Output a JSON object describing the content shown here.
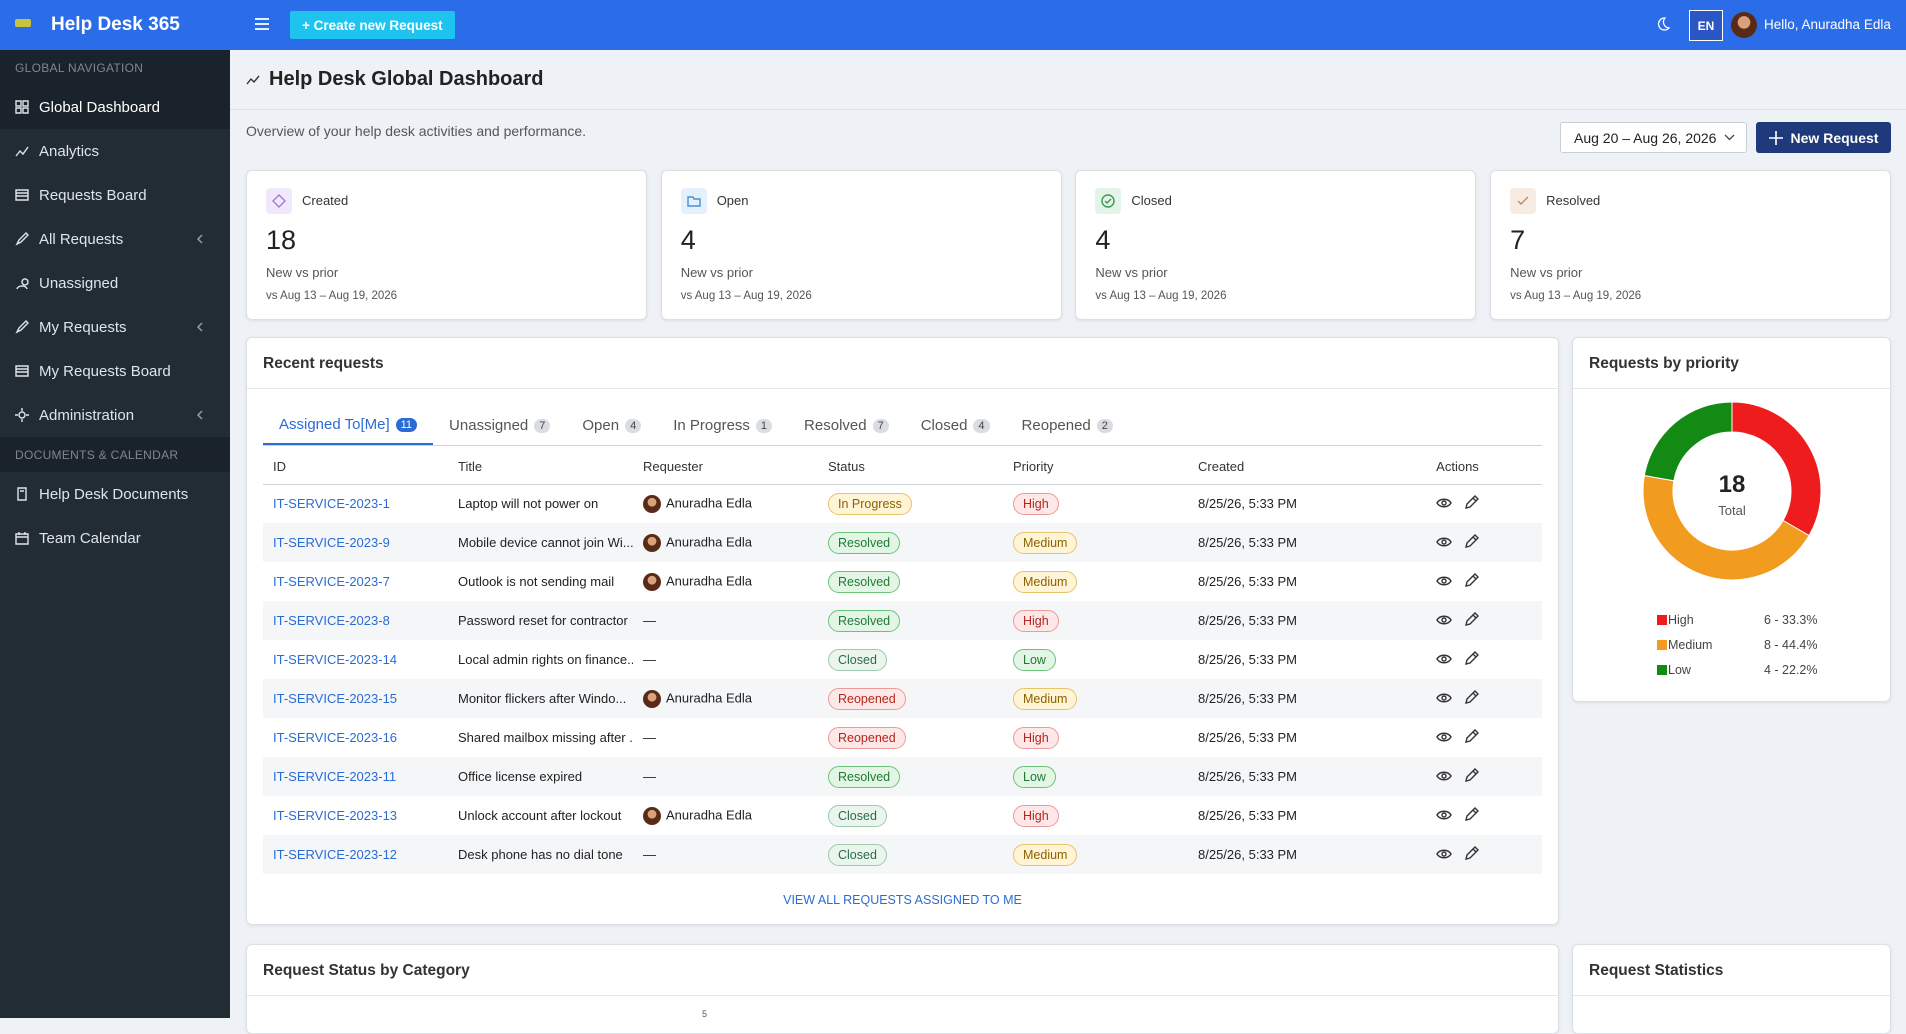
{
  "header": {
    "app_name": "Help Desk 365",
    "create_button": "+ Create new Request",
    "language": "EN",
    "greeting": "Hello, Anuradha Edla"
  },
  "sidebar": {
    "sections": [
      {
        "title": "GLOBAL NAVIGATION",
        "items": [
          {
            "label": "Global Dashboard",
            "active": true,
            "expandable": false
          },
          {
            "label": "Analytics",
            "active": false,
            "expandable": false
          },
          {
            "label": "Requests Board",
            "active": false,
            "expandable": false
          },
          {
            "label": "All Requests",
            "active": false,
            "expandable": true
          },
          {
            "label": "Unassigned",
            "active": false,
            "expandable": false
          },
          {
            "label": "My Requests",
            "active": false,
            "expandable": true
          },
          {
            "label": "My Requests Board",
            "active": false,
            "expandable": false
          },
          {
            "label": "Administration",
            "active": false,
            "expandable": true
          }
        ]
      },
      {
        "title": "DOCUMENTS & CALENDAR",
        "items": [
          {
            "label": "Help Desk Documents",
            "active": false,
            "expandable": false
          },
          {
            "label": "Team Calendar",
            "active": false,
            "expandable": false
          }
        ]
      }
    ]
  },
  "page": {
    "title": "Help Desk Global Dashboard",
    "subtitle": "Overview of your help desk activities and performance.",
    "date_range": "Aug 20 – Aug 26, 2026",
    "new_request": "New Request"
  },
  "stats": [
    {
      "label": "Created",
      "value": 18,
      "note": "New vs prior",
      "range": "vs Aug 13 – Aug 19, 2026"
    },
    {
      "label": "Open",
      "value": 4,
      "note": "New vs prior",
      "range": "vs Aug 13 – Aug 19, 2026"
    },
    {
      "label": "Closed",
      "value": 4,
      "note": "New vs prior",
      "range": "vs Aug 13 – Aug 19, 2026"
    },
    {
      "label": "Resolved",
      "value": 7,
      "note": "New vs prior",
      "range": "vs Aug 13 – Aug 19, 2026"
    }
  ],
  "recent": {
    "title": "Recent requests",
    "tabs": [
      {
        "label": "Assigned To[Me]",
        "count": 11
      },
      {
        "label": "Unassigned",
        "count": 7
      },
      {
        "label": "Open",
        "count": 4
      },
      {
        "label": "In Progress",
        "count": 1
      },
      {
        "label": "Resolved",
        "count": 7
      },
      {
        "label": "Closed",
        "count": 4
      },
      {
        "label": "Reopened",
        "count": 2
      }
    ],
    "columns": [
      "ID",
      "Title",
      "Requester",
      "Status",
      "Priority",
      "Created",
      "Actions"
    ],
    "rows": [
      [
        "IT-SERVICE-2023-1",
        "Laptop will not power on",
        "Anuradha Edla",
        "In Progress",
        "High",
        "8/25/26, 5:33 PM"
      ],
      [
        "IT-SERVICE-2023-9",
        "Mobile device cannot join Wi...",
        "Anuradha Edla",
        "Resolved",
        "Medium",
        "8/25/26, 5:33 PM"
      ],
      [
        "IT-SERVICE-2023-7",
        "Outlook is not sending mail",
        "Anuradha Edla",
        "Resolved",
        "Medium",
        "8/25/26, 5:33 PM"
      ],
      [
        "IT-SERVICE-2023-8",
        "Password reset for contractor",
        "—",
        "Resolved",
        "High",
        "8/25/26, 5:33 PM"
      ],
      [
        "IT-SERVICE-2023-14",
        "Local admin rights on finance...",
        "—",
        "Closed",
        "Low",
        "8/25/26, 5:33 PM"
      ],
      [
        "IT-SERVICE-2023-15",
        "Monitor flickers after Windo...",
        "Anuradha Edla",
        "Reopened",
        "Medium",
        "8/25/26, 5:33 PM"
      ],
      [
        "IT-SERVICE-2023-16",
        "Shared mailbox missing after ...",
        "—",
        "Reopened",
        "High",
        "8/25/26, 5:33 PM"
      ],
      [
        "IT-SERVICE-2023-11",
        "Office license expired",
        "—",
        "Resolved",
        "Low",
        "8/25/26, 5:33 PM"
      ],
      [
        "IT-SERVICE-2023-13",
        "Unlock account after lockout",
        "Anuradha Edla",
        "Closed",
        "High",
        "8/25/26, 5:33 PM"
      ],
      [
        "IT-SERVICE-2023-12",
        "Desk phone has no dial tone",
        "—",
        "Closed",
        "Medium",
        "8/25/26, 5:33 PM"
      ]
    ],
    "footer": "VIEW ALL REQUESTS ASSIGNED TO ME"
  },
  "priority": {
    "title": "Requests by priority",
    "total": 18,
    "total_label": "Total",
    "items": [
      {
        "name": "High",
        "value": 6,
        "label": "6 - 33.3%",
        "color": "#ee1c1c"
      },
      {
        "name": "Medium",
        "value": 8,
        "label": "8 - 44.4%",
        "color": "#f29c1f"
      },
      {
        "name": "Low",
        "value": 4,
        "label": "4 - 22.2%",
        "color": "#138a13"
      }
    ]
  },
  "bottom": {
    "category_title": "Request Status by Category",
    "category_axis_top": "5",
    "stats_title": "Request Statistics"
  }
}
